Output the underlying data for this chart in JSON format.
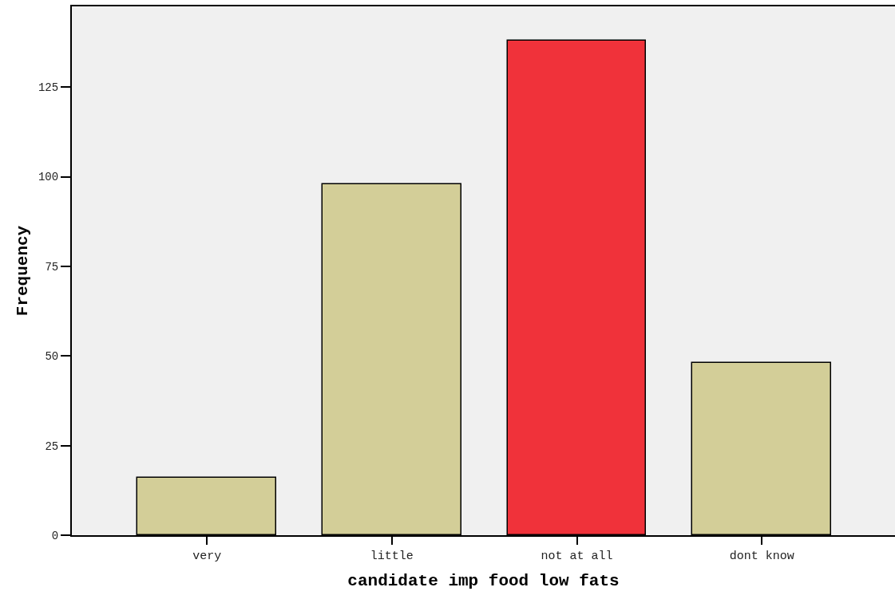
{
  "chart_data": {
    "type": "bar",
    "xlabel": "candidate imp food low fats",
    "ylabel": "Frequency",
    "categories": [
      "very",
      "little",
      "not at all",
      "dont know"
    ],
    "values": [
      16,
      98,
      138,
      48
    ],
    "colors": [
      "#d3ce98",
      "#d3ce98",
      "#f0323a",
      "#d3ce98"
    ],
    "ylim": [
      0,
      147.5
    ],
    "yticks": [
      0,
      25,
      50,
      75,
      100,
      125
    ],
    "grid": false
  }
}
